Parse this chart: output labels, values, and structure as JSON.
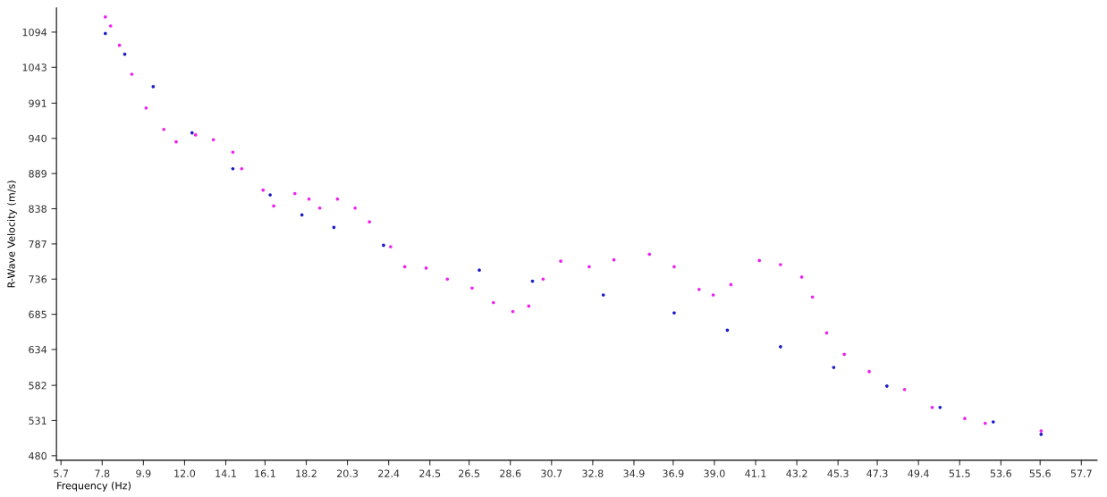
{
  "chart_data": {
    "type": "scatter",
    "xlabel": "Frequency (Hz)",
    "ylabel": "R-Wave Velocity (m/s)",
    "xlim": [
      5.47,
      58.5
    ],
    "ylim": [
      473.5,
      1129
    ],
    "xticks": [
      5.7,
      7.8,
      9.9,
      {
        "value": 12.0,
        "label": "12.0"
      },
      14.1,
      16.1,
      18.2,
      20.3,
      22.4,
      24.5,
      26.5,
      28.6,
      30.7,
      32.8,
      34.9,
      36.9,
      {
        "value": 39.0,
        "label": "39.0"
      },
      41.1,
      43.2,
      45.3,
      47.3,
      49.4,
      51.5,
      53.6,
      55.6,
      57.7
    ],
    "yticks": [
      480,
      531,
      582,
      634,
      685,
      736,
      787,
      838,
      889,
      940,
      991,
      1043,
      1094
    ],
    "grid": false,
    "legend": false,
    "marker": "circle",
    "series": [
      {
        "color": "#ee22ee",
        "x": [
          7.96,
          8.23,
          8.68,
          9.31,
          10.04,
          10.94,
          11.57,
          12.56,
          13.47,
          14.46,
          14.91,
          16.0,
          16.54,
          17.62,
          18.34,
          18.89,
          19.79,
          20.69,
          21.42,
          22.5,
          23.22,
          24.31,
          25.39,
          26.65,
          27.74,
          28.73,
          29.54,
          30.27,
          31.17,
          32.62,
          33.88,
          35.69,
          36.95,
          38.22,
          38.94,
          39.84,
          41.29,
          42.37,
          43.45,
          44.0,
          44.72,
          45.62,
          46.89,
          48.69,
          50.1,
          51.76,
          52.8,
          55.65
        ],
        "values": [
          1116,
          1103,
          1075,
          1033,
          984,
          953,
          935,
          945,
          938,
          920,
          896,
          865,
          842,
          860,
          852,
          839,
          852,
          839,
          819,
          783,
          754,
          752,
          736,
          723,
          702,
          689,
          697,
          736,
          762,
          754,
          764,
          772,
          754,
          721,
          713,
          728,
          763,
          757,
          739,
          710,
          658,
          627,
          602,
          576,
          550,
          534,
          527,
          516
        ]
      },
      {
        "color": "#1c1cc8",
        "x": [
          7.96,
          8.95,
          10.4,
          12.38,
          14.46,
          16.36,
          17.98,
          19.61,
          22.14,
          27.02,
          29.73,
          33.34,
          36.95,
          39.66,
          42.37,
          45.08,
          47.79,
          50.5,
          53.21,
          55.65
        ],
        "values": [
          1092,
          1062,
          1015,
          948,
          896,
          858,
          829,
          811,
          785,
          749,
          733,
          713,
          687,
          662,
          638,
          608,
          581,
          550,
          529,
          511
        ]
      }
    ]
  }
}
